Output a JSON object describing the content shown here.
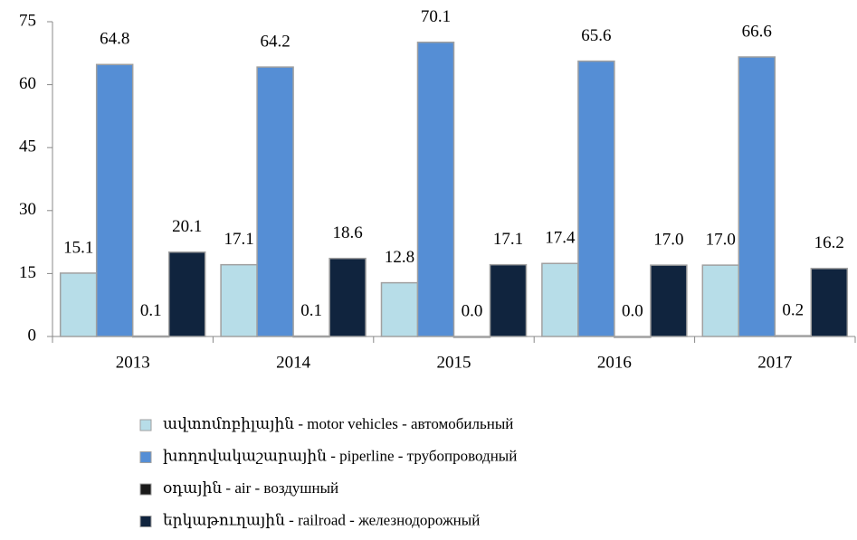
{
  "chart_data": {
    "type": "bar",
    "categories": [
      "2013",
      "2014",
      "2015",
      "2016",
      "2017"
    ],
    "series": [
      {
        "name": "ավտոմոբիլային - motor vehicles - автомобильный",
        "color": "#b7dde8",
        "values": [
          15.1,
          17.1,
          12.8,
          17.4,
          17.0
        ],
        "value_labels": [
          "15.1",
          "17.1",
          "12.8",
          "17.4",
          "17.0"
        ]
      },
      {
        "name": "խողովակաշարային - piperline - трубопроводный",
        "color": "#558ed5",
        "values": [
          64.8,
          64.2,
          70.1,
          65.6,
          66.6
        ],
        "value_labels": [
          "64.8",
          "64.2",
          "70.1",
          "65.6",
          "66.6"
        ]
      },
      {
        "name": "օդային - air - воздушный",
        "color": "#1a1a1a",
        "values": [
          0.1,
          0.1,
          0.0,
          0.0,
          0.2
        ],
        "value_labels": [
          "0.1",
          "0.1",
          "0.0",
          "0.0",
          "0.2"
        ]
      },
      {
        "name": "երկաթուղային - railroad - железнодорожный",
        "color": "#10243e",
        "values": [
          20.1,
          18.6,
          17.1,
          17.0,
          16.2
        ],
        "value_labels": [
          "20.1",
          "18.6",
          "17.1",
          "17.0",
          "16.2"
        ]
      }
    ],
    "ylim": [
      0,
      75
    ],
    "yticks": [
      0,
      15,
      30,
      45,
      60,
      75
    ],
    "grid": false,
    "legend": "bottom"
  }
}
